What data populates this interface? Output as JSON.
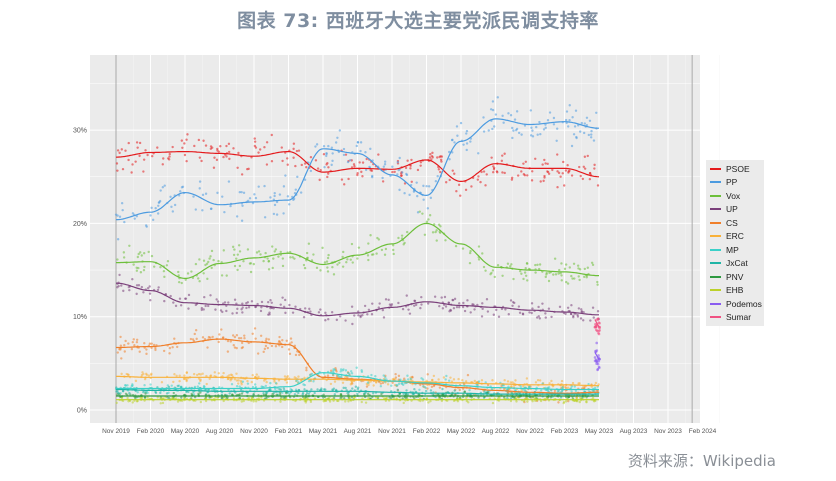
{
  "title": "图表 73: 西班牙大选主要党派民调支持率",
  "source": "资料来源：Wikipedia",
  "chart_data": {
    "type": "scatter",
    "x_ticks": [
      "Nov 2019",
      "Feb 2020",
      "May 2020",
      "Aug 2020",
      "Nov 2020",
      "Feb 2021",
      "May 2021",
      "Aug 2021",
      "Nov 2021",
      "Feb 2022",
      "May 2022",
      "Aug 2022",
      "Nov 2022",
      "Feb 2023",
      "May 2023",
      "Aug 2023",
      "Nov 2023",
      "Feb 2024"
    ],
    "y_ticks": [
      "0%",
      "10%",
      "20%",
      "30%"
    ],
    "ylim": [
      0,
      35
    ],
    "x_range": [
      0,
      17.5
    ],
    "vlines": [
      0,
      16.7
    ],
    "legend_position": "right",
    "x": [
      0,
      1,
      2,
      3,
      4,
      5,
      6,
      7,
      8,
      9,
      10,
      11,
      12,
      13,
      14
    ],
    "series": [
      {
        "name": "PSOE",
        "color": "#e41a1c",
        "trend": [
          27.1,
          27.6,
          27.7,
          27.5,
          27.2,
          27.7,
          25.5,
          25.9,
          25.8,
          26.8,
          24.5,
          26.4,
          25.9,
          25.9,
          25.0
        ],
        "spread": 1.6
      },
      {
        "name": "PP",
        "color": "#4c9be0",
        "trend": [
          20.4,
          21.2,
          23.3,
          22.0,
          22.3,
          22.5,
          28.0,
          27.5,
          25.2,
          23.0,
          28.8,
          31.2,
          30.6,
          30.9,
          30.2
        ],
        "spread": 1.8
      },
      {
        "name": "Vox",
        "color": "#6dbf3a",
        "trend": [
          15.8,
          15.9,
          14.1,
          15.7,
          16.3,
          16.8,
          15.6,
          16.6,
          17.8,
          20.0,
          17.8,
          15.3,
          15.0,
          14.8,
          14.4
        ],
        "spread": 1.3
      },
      {
        "name": "UP",
        "color": "#7a3f7a",
        "trend": [
          13.6,
          12.8,
          11.5,
          11.3,
          11.2,
          10.9,
          10.1,
          10.4,
          11.0,
          11.6,
          11.2,
          11.0,
          10.7,
          10.5,
          10.2
        ],
        "spread": 0.9
      },
      {
        "name": "CS",
        "color": "#f07f2a",
        "trend": [
          6.7,
          6.8,
          7.2,
          7.6,
          7.3,
          7.0,
          3.5,
          3.3,
          3.1,
          2.8,
          2.4,
          2.1,
          1.9,
          1.8,
          1.9
        ],
        "spread": 0.9
      },
      {
        "name": "ERC",
        "color": "#f9b139",
        "trend": [
          3.6,
          3.5,
          3.5,
          3.5,
          3.4,
          3.3,
          3.3,
          3.2,
          3.1,
          3.0,
          2.9,
          2.8,
          2.7,
          2.7,
          2.6
        ],
        "spread": 0.5
      },
      {
        "name": "MP",
        "color": "#3ad0c8",
        "trend": [
          2.3,
          2.3,
          2.3,
          2.3,
          2.3,
          2.5,
          4.0,
          3.6,
          3.1,
          2.9,
          2.6,
          2.4,
          2.3,
          2.2,
          2.2
        ],
        "spread": 0.6
      },
      {
        "name": "JxCat",
        "color": "#1fb5a6",
        "trend": [
          2.2,
          2.1,
          2.1,
          2.0,
          2.0,
          2.0,
          2.0,
          2.0,
          1.9,
          1.8,
          1.8,
          1.7,
          1.7,
          1.7,
          1.7
        ],
        "spread": 0.4
      },
      {
        "name": "PNV",
        "color": "#2e9940",
        "trend": [
          1.5,
          1.5,
          1.5,
          1.5,
          1.5,
          1.5,
          1.5,
          1.5,
          1.5,
          1.5,
          1.5,
          1.5,
          1.5,
          1.5,
          1.5
        ],
        "spread": 0.3
      },
      {
        "name": "EHB",
        "color": "#bcd12a",
        "trend": [
          1.1,
          1.1,
          1.1,
          1.1,
          1.1,
          1.1,
          1.1,
          1.1,
          1.1,
          1.1,
          1.1,
          1.1,
          1.1,
          1.1,
          1.1
        ],
        "spread": 0.3
      },
      {
        "name": "Podemos",
        "color": "#8a5cf0",
        "trend": [
          null,
          null,
          null,
          null,
          null,
          null,
          null,
          null,
          null,
          null,
          null,
          null,
          null,
          null,
          5.4
        ],
        "spread": 1.0
      },
      {
        "name": "Sumar",
        "color": "#f05283",
        "trend": [
          null,
          null,
          null,
          null,
          null,
          null,
          null,
          null,
          null,
          null,
          null,
          null,
          null,
          null,
          8.9
        ],
        "spread": 0.8
      }
    ]
  }
}
